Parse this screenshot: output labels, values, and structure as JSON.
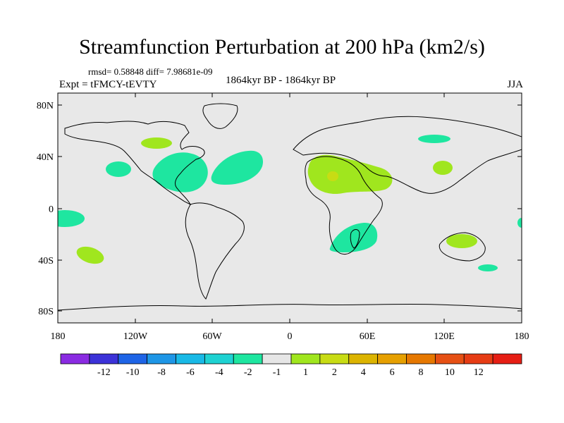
{
  "title": "Streamfunction Perturbation at 200 hPa (km2/s)",
  "stats": "rmsd= 0.58848 diff= 7.98681e-09",
  "experiment": "Expt = tFMCY-tEVTY",
  "period": "1864kyr BP - 1864kyr BP",
  "season": "JJA",
  "map": {
    "ocean_color": "#e8e8e8",
    "lat_labels": [
      "80N",
      "40N",
      "0",
      "40S",
      "80S"
    ],
    "lon_labels": [
      "180",
      "120W",
      "60W",
      "0",
      "60E",
      "120E",
      "180"
    ]
  },
  "colorbar": {
    "colors": [
      "#8a2be2",
      "#3c32d8",
      "#1e64e6",
      "#1e96e6",
      "#19b9e6",
      "#1ed2d2",
      "#1ee6a0",
      "#e6e6e6",
      "#a0e61e",
      "#c8dc14",
      "#dcb400",
      "#e6a000",
      "#e67800",
      "#e65014",
      "#e63c14",
      "#e61e14"
    ],
    "labels": [
      "-12",
      "-10",
      "-8",
      "-6",
      "-4",
      "-2",
      "-1",
      "1",
      "2",
      "4",
      "6",
      "8",
      "10",
      "12"
    ]
  }
}
